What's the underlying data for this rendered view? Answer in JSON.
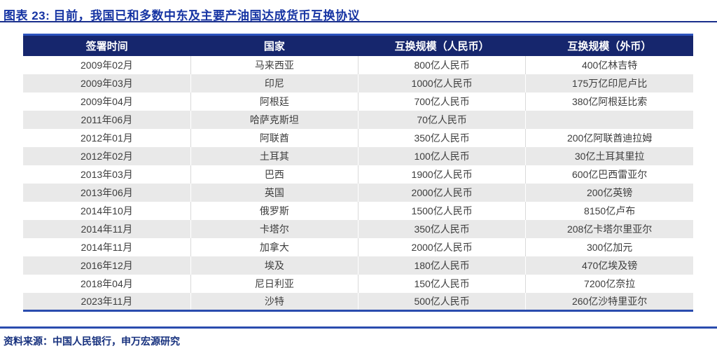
{
  "title": "图表 23: 目前，我国已和多数中东及主要产油国达成货币互换协议",
  "chart_data": {
    "type": "table",
    "title": "目前，我国已和多数中东及主要产油国达成货币互换协议",
    "figure_label": "图表 23:",
    "columns": [
      "签署时间",
      "国家",
      "互换规模（人民币）",
      "互换规模（外币）"
    ],
    "rows": [
      [
        "2009年02月",
        "马来西亚",
        "800亿人民币",
        "400亿林吉特"
      ],
      [
        "2009年03月",
        "印尼",
        "1000亿人民币",
        "175万亿印尼卢比"
      ],
      [
        "2009年04月",
        "阿根廷",
        "700亿人民币",
        "380亿阿根廷比索"
      ],
      [
        "2011年06月",
        "哈萨克斯坦",
        "70亿人民币",
        ""
      ],
      [
        "2012年01月",
        "阿联酋",
        "350亿人民币",
        "200亿阿联酋迪拉姆"
      ],
      [
        "2012年02月",
        "土耳其",
        "100亿人民币",
        "30亿土耳其里拉"
      ],
      [
        "2013年03月",
        "巴西",
        "1900亿人民币",
        "600亿巴西雷亚尔"
      ],
      [
        "2013年06月",
        "英国",
        "2000亿人民币",
        "200亿英镑"
      ],
      [
        "2014年10月",
        "俄罗斯",
        "1500亿人民币",
        "8150亿卢布"
      ],
      [
        "2014年11月",
        "卡塔尔",
        "350亿人民币",
        "208亿卡塔尔里亚尔"
      ],
      [
        "2014年11月",
        "加拿大",
        "2000亿人民币",
        "300亿加元"
      ],
      [
        "2016年12月",
        "埃及",
        "180亿人民币",
        "470亿埃及镑"
      ],
      [
        "2018年04月",
        "尼日利亚",
        "150亿人民币",
        "7200亿奈拉"
      ],
      [
        "2023年11月",
        "沙特",
        "500亿人民币",
        "260亿沙特里亚尔"
      ]
    ]
  },
  "footer": {
    "source": "资料来源：中国人民银行，申万宏源研究"
  },
  "colors": {
    "title_blue": "#1634a3",
    "header_navy": "#16266d",
    "header_top_border": "#2c53bd",
    "alt_row_gray": "#e9e9e9",
    "rule_blue": "#2a4cae",
    "footer_navy": "#17317e"
  }
}
